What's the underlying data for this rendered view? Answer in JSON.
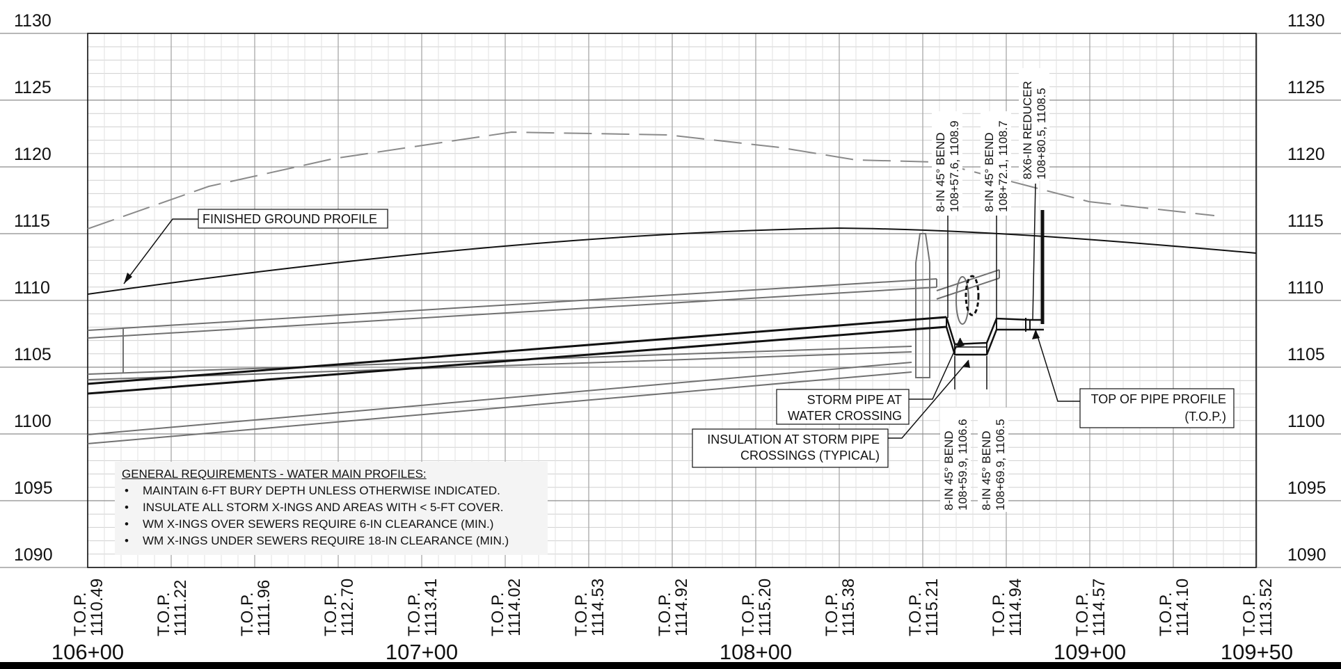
{
  "elevations": [
    "1130",
    "1125",
    "1120",
    "1115",
    "1110",
    "1105",
    "1100",
    "1095",
    "1090"
  ],
  "stations": [
    {
      "label": "106+00"
    },
    {
      "label": "107+00"
    },
    {
      "label": "108+00"
    },
    {
      "label": "109+00"
    },
    {
      "label": "109+50"
    }
  ],
  "top_of_pipe": [
    {
      "prefix": "T.O.P.",
      "value": "1110.49"
    },
    {
      "prefix": "T.O.P.",
      "value": "1111.22"
    },
    {
      "prefix": "T.O.P.",
      "value": "1111.96"
    },
    {
      "prefix": "T.O.P.",
      "value": "1112.70"
    },
    {
      "prefix": "T.O.P.",
      "value": "1113.41"
    },
    {
      "prefix": "T.O.P.",
      "value": "1114.02"
    },
    {
      "prefix": "T.O.P.",
      "value": "1114.53"
    },
    {
      "prefix": "T.O.P.",
      "value": "1114.92"
    },
    {
      "prefix": "T.O.P.",
      "value": "1115.20"
    },
    {
      "prefix": "T.O.P.",
      "value": "1115.38"
    },
    {
      "prefix": "T.O.P.",
      "value": "1115.21"
    },
    {
      "prefix": "T.O.P.",
      "value": "1114.94"
    },
    {
      "prefix": "T.O.P.",
      "value": "1114.57"
    },
    {
      "prefix": "T.O.P.",
      "value": "1114.10"
    },
    {
      "prefix": "T.O.P.",
      "value": "1113.52"
    }
  ],
  "callouts": {
    "finished_ground": "FINISHED GROUND PROFILE",
    "storm_pipe_1": "STORM PIPE AT",
    "storm_pipe_2": "WATER CROSSING",
    "insulation_1": "INSULATION AT STORM PIPE",
    "insulation_2": "CROSSINGS (TYPICAL)",
    "top_profile_1": "TOP OF PIPE PROFILE",
    "top_profile_2": "(T.O.P.)"
  },
  "fittings": [
    {
      "line1": "8-IN 45° BEND",
      "line2": "108+57.6, 1108.9"
    },
    {
      "line1": "8-IN 45° BEND",
      "line2": "108+72.1, 1108.7"
    },
    {
      "line1": "8X6-IN REDUCER",
      "line2": "108+80.5, 1108.5"
    },
    {
      "line1": "8-IN 45° BEND",
      "line2": "108+59.9, 1106.6"
    },
    {
      "line1": "8-IN 45° BEND",
      "line2": "108+69.9, 1106.5"
    }
  ],
  "notes": {
    "heading": "GENERAL REQUIREMENTS - WATER MAIN PROFILES:",
    "items": [
      "MAINTAIN 6-FT BURY DEPTH UNLESS OTHERWISE INDICATED.",
      "INSULATE ALL STORM X-INGS AND AREAS WITH < 5-FT COVER.",
      "WM X-INGS OVER SEWERS REQUIRE 6-IN CLEARANCE (MIN.)",
      "WM X-INGS UNDER SEWERS REQUIRE 18-IN CLEARANCE (MIN.)"
    ]
  },
  "colors": {
    "line": "#111111",
    "grid": "#c8c8c8",
    "grid_major": "#a0a0a0",
    "pipe_gray": "#707070",
    "dash": "#8a8a8a"
  }
}
